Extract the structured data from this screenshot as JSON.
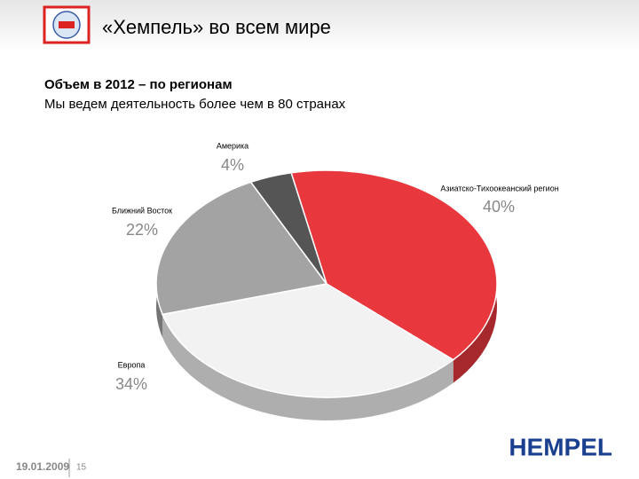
{
  "header": {
    "title": "«Хемпель» во всем мире"
  },
  "chart_data": {
    "type": "pie",
    "title": "Объем в 2012 – по регионам",
    "subtitle": "Мы ведем деятельность более чем в 80 странах",
    "categories": [
      "Азиатско-Тихоокеанский регион",
      "Европа",
      "Ближний Восток",
      "Америка"
    ],
    "values": [
      40,
      34,
      22,
      4
    ],
    "value_labels": [
      "40%",
      "34%",
      "22%",
      "4%"
    ],
    "colors": [
      "#e8383d",
      "#f2f2f2",
      "#a3a3a3",
      "#555555"
    ]
  },
  "footer": {
    "date": "19.01.2009",
    "page": "15",
    "logo": "HEMPEL"
  }
}
